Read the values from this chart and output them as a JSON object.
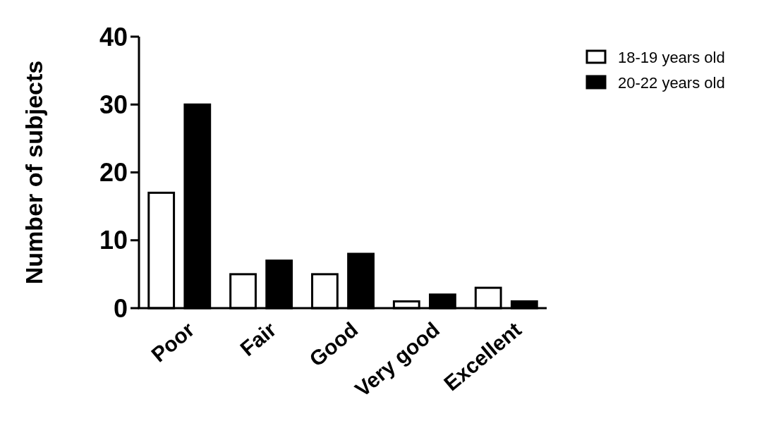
{
  "chart_data": {
    "type": "bar",
    "ylabel": "Number of subjects",
    "categories": [
      "Poor",
      "Fair",
      "Good",
      "Very good",
      "Excellent"
    ],
    "series": [
      {
        "name": "18-19 years old",
        "color": "#ffffff",
        "values": [
          17,
          5,
          5,
          1,
          3
        ]
      },
      {
        "name": "20-22 years old",
        "color": "#000000",
        "values": [
          30,
          7,
          8,
          2,
          1
        ]
      }
    ],
    "ylim": [
      0,
      40
    ],
    "yticks": [
      0,
      10,
      20,
      30,
      40
    ],
    "grid": false,
    "legend": "top right"
  }
}
